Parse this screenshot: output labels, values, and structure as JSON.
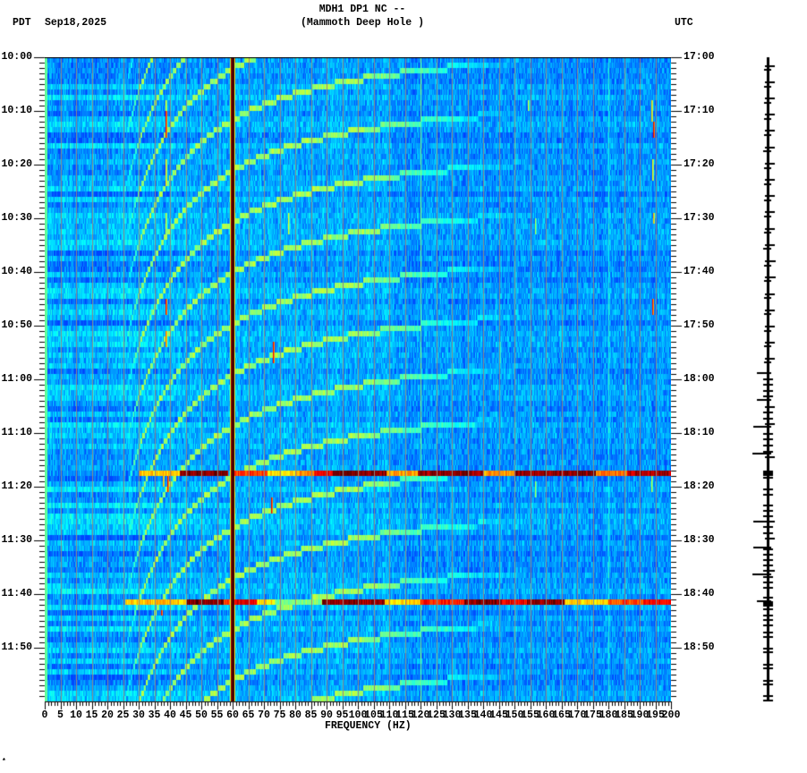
{
  "header": {
    "title": "MDH1 DP1 NC --",
    "subtitle": "(Mammoth Deep Hole )",
    "left_timezone": "PDT",
    "date": "Sep18,2025",
    "right_timezone": "UTC"
  },
  "axes": {
    "y_left": [
      "10:00",
      "10:10",
      "10:20",
      "10:30",
      "10:40",
      "10:50",
      "11:00",
      "11:10",
      "11:20",
      "11:30",
      "11:40",
      "11:50"
    ],
    "y_right": [
      "17:00",
      "17:10",
      "17:20",
      "17:30",
      "17:40",
      "17:50",
      "18:00",
      "18:10",
      "18:20",
      "18:30",
      "18:40",
      "18:50"
    ],
    "x_ticks": [
      "0",
      "5",
      "10",
      "15",
      "20",
      "25",
      "30",
      "35",
      "40",
      "45",
      "50",
      "55",
      "60",
      "65",
      "70",
      "75",
      "80",
      "85",
      "90",
      "95",
      "100",
      "105",
      "110",
      "115",
      "120",
      "125",
      "130",
      "135",
      "140",
      "145",
      "150",
      "155",
      "160",
      "165",
      "170",
      "175",
      "180",
      "185",
      "190",
      "195",
      "200"
    ],
    "x_title": "FREQUENCY (HZ)"
  },
  "corner_mark": "*",
  "chart_data": {
    "type": "heatmap",
    "title": "MDH1 DP1 NC -- (Mammoth Deep Hole )",
    "xlabel": "FREQUENCY (HZ)",
    "ylabel_left": "PDT",
    "ylabel_right": "UTC",
    "date": "Sep18,2025",
    "xlim": [
      0,
      200
    ],
    "x_tick_step": 5,
    "time_range_pdt": [
      "10:00",
      "12:00"
    ],
    "time_range_utc": [
      "17:00",
      "19:00"
    ],
    "y_tick_step_min": 10,
    "colormap": "jet",
    "grid": {
      "vertical_every_hz": 5,
      "color": "#8a8a8a"
    },
    "render": {
      "seed": 918,
      "minutes": 120,
      "background": 0.29,
      "row_noise": 0.14,
      "col_noise": 0.05,
      "cell_noise": 0.12,
      "low_freq_edge_level": 0.47
    },
    "vertical_lines": [
      {
        "freq_hz": 60,
        "profile": [
          0.62,
          1.0,
          1.0,
          1.12,
          1.0,
          0.6
        ]
      },
      {
        "freq_hz": 120,
        "profile": [
          0.52
        ]
      },
      {
        "freq_hz": 180,
        "profile": [
          0.44
        ]
      }
    ],
    "horizontal_events": [
      {
        "time_pdt": "11:17",
        "time_utc": "18:17",
        "minute": 77,
        "segments": [
          [
            30,
            43,
            0.68
          ],
          [
            43,
            58.5,
            1.0
          ],
          [
            60.5,
            71,
            0.82
          ],
          [
            71,
            80,
            0.66
          ],
          [
            80,
            86,
            0.74
          ],
          [
            86,
            92,
            0.88
          ],
          [
            92,
            109,
            0.99
          ],
          [
            109,
            119,
            0.72
          ],
          [
            119,
            140,
            0.98
          ],
          [
            140,
            150,
            0.72
          ],
          [
            150,
            176,
            0.98
          ],
          [
            176,
            186,
            0.76
          ],
          [
            186,
            200,
            0.95
          ]
        ]
      },
      {
        "time_pdt": "11:41",
        "time_utc": "18:41",
        "minute": 101,
        "segments": [
          [
            25.7,
            45,
            0.68
          ],
          [
            45,
            57,
            1.0
          ],
          [
            57,
            59,
            0.8
          ],
          [
            60.5,
            67.7,
            0.9
          ],
          [
            67.7,
            73.4,
            0.66
          ],
          [
            73.4,
            88.6,
            0.5
          ],
          [
            88.6,
            108.6,
            0.98
          ],
          [
            108.6,
            120,
            0.66
          ],
          [
            120,
            134,
            0.85
          ],
          [
            134,
            146,
            0.99
          ],
          [
            146,
            154,
            0.88
          ],
          [
            154,
            166,
            0.99
          ],
          [
            166,
            180,
            0.67
          ],
          [
            180,
            191,
            0.8
          ],
          [
            191,
            200,
            0.88
          ]
        ]
      }
    ],
    "gliding_arcs": {
      "first_minute_at_60hz": 2.2,
      "period_min": 9.5,
      "start_index": -3,
      "count": 19,
      "fmin_hz": 25,
      "fade_start_hz": 100,
      "fmax_hz": 155,
      "shape_k": 3796,
      "shape_p": 1.35,
      "level": [
        0.48,
        0.58
      ]
    },
    "spikes": [
      [
        38.6,
        8.0,
        10.5,
        0.62
      ],
      [
        38.6,
        10.5,
        14.3,
        0.88
      ],
      [
        38.6,
        19.8,
        23.8,
        0.66
      ],
      [
        38.6,
        29.3,
        32.7,
        0.6
      ],
      [
        38.6,
        45.7,
        48.0,
        0.88
      ],
      [
        38.6,
        51.3,
        54.0,
        0.8
      ],
      [
        39.1,
        78.0,
        81.0,
        0.88
      ],
      [
        37.6,
        78.0,
        79.5,
        0.7
      ],
      [
        37.2,
        103.0,
        104.0,
        0.88
      ],
      [
        72.9,
        53.5,
        56.8,
        0.88
      ],
      [
        72.3,
        82.0,
        84.8,
        0.9
      ],
      [
        77.7,
        29.3,
        32.7,
        0.6
      ],
      [
        193.8,
        8.7,
        11.3,
        0.68
      ],
      [
        194.3,
        12.0,
        14.7,
        0.9
      ],
      [
        194.0,
        19.3,
        22.7,
        0.64
      ],
      [
        194.3,
        29.3,
        31.0,
        0.7
      ],
      [
        194.0,
        45.3,
        47.7,
        0.86
      ],
      [
        193.6,
        78.7,
        81.0,
        0.58
      ],
      [
        154.3,
        8.0,
        10.0,
        0.58
      ],
      [
        145.0,
        53.5,
        56.8,
        0.56
      ],
      [
        156.6,
        30.2,
        32.7,
        0.55
      ],
      [
        156.6,
        79.3,
        81.8,
        0.55
      ]
    ]
  },
  "trace": {
    "ticks": [
      [
        73,
        2,
        6
      ],
      [
        77,
        3,
        2
      ],
      [
        91,
        2,
        6
      ],
      [
        96,
        3,
        2
      ],
      [
        109,
        2,
        6
      ],
      [
        114,
        3,
        2
      ],
      [
        127,
        2,
        6
      ],
      [
        132,
        3,
        2
      ],
      [
        145,
        2,
        6
      ],
      [
        150,
        3,
        2
      ],
      [
        164,
        2,
        6
      ],
      [
        168,
        4,
        2
      ],
      [
        182,
        2,
        6
      ],
      [
        187,
        3,
        2
      ],
      [
        200,
        2,
        6
      ],
      [
        205,
        3,
        2
      ],
      [
        218,
        2,
        6
      ],
      [
        223,
        3,
        2
      ],
      [
        236,
        2,
        6
      ],
      [
        241,
        3,
        2
      ],
      [
        255,
        2,
        6
      ],
      [
        259,
        3,
        2
      ],
      [
        273,
        2,
        6
      ],
      [
        277,
        4,
        2
      ],
      [
        291,
        2,
        7
      ],
      [
        296,
        3,
        2
      ],
      [
        309,
        2,
        7
      ],
      [
        313,
        3,
        2
      ],
      [
        328,
        2,
        6
      ],
      [
        332,
        3,
        2
      ],
      [
        346,
        2,
        6
      ],
      [
        350,
        3,
        2
      ],
      [
        364,
        2,
        6
      ],
      [
        369,
        3,
        2
      ],
      [
        382,
        2,
        6
      ],
      [
        386,
        3,
        2
      ],
      [
        400,
        2,
        6
      ],
      [
        404,
        3,
        2
      ],
      [
        416,
        11,
        2
      ],
      [
        423,
        4,
        4
      ],
      [
        429,
        4,
        4
      ],
      [
        436,
        4,
        4
      ],
      [
        442,
        4,
        4
      ],
      [
        446,
        11,
        2
      ],
      [
        454,
        2,
        6
      ],
      [
        460,
        4,
        4
      ],
      [
        467,
        4,
        4
      ],
      [
        473,
        2,
        6
      ],
      [
        476,
        15,
        2
      ],
      [
        484,
        4,
        4
      ],
      [
        490,
        4,
        4
      ],
      [
        497,
        4,
        4
      ],
      [
        504,
        4,
        4
      ],
      [
        506,
        16,
        2
      ],
      [
        510,
        2,
        6
      ],
      [
        533,
        4,
        4
      ],
      [
        546,
        4,
        4
      ],
      [
        552,
        4,
        4
      ],
      [
        564,
        4,
        4
      ],
      [
        570,
        4,
        4
      ],
      [
        576,
        4,
        4
      ],
      [
        582,
        15,
        6
      ],
      [
        588,
        4,
        4
      ],
      [
        595,
        4,
        4
      ],
      [
        601,
        2,
        6
      ],
      [
        611,
        15,
        2
      ],
      [
        613,
        4,
        4
      ],
      [
        619,
        4,
        4
      ],
      [
        625,
        4,
        4
      ],
      [
        631,
        4,
        4
      ],
      [
        637,
        4,
        6
      ],
      [
        641,
        16,
        2
      ],
      [
        644,
        4,
        4
      ],
      [
        650,
        4,
        4
      ],
      [
        656,
        4,
        4
      ],
      [
        667,
        4,
        4
      ],
      [
        671,
        11,
        2
      ],
      [
        680,
        4,
        4
      ],
      [
        687,
        4,
        4
      ],
      [
        692,
        4,
        4
      ],
      [
        698,
        4,
        4
      ],
      [
        706,
        4,
        4
      ],
      [
        711,
        4,
        4
      ],
      [
        724,
        4,
        4
      ],
      [
        728,
        4,
        4
      ],
      [
        742,
        4,
        4
      ],
      [
        746,
        4,
        4
      ],
      [
        760,
        4,
        4
      ],
      [
        764,
        4,
        4
      ],
      [
        777,
        4,
        4
      ],
      [
        782,
        4,
        4
      ]
    ],
    "blocks": [
      [
        526,
        6,
        4,
        4
      ],
      [
        672,
        6,
        4,
        4
      ]
    ]
  }
}
